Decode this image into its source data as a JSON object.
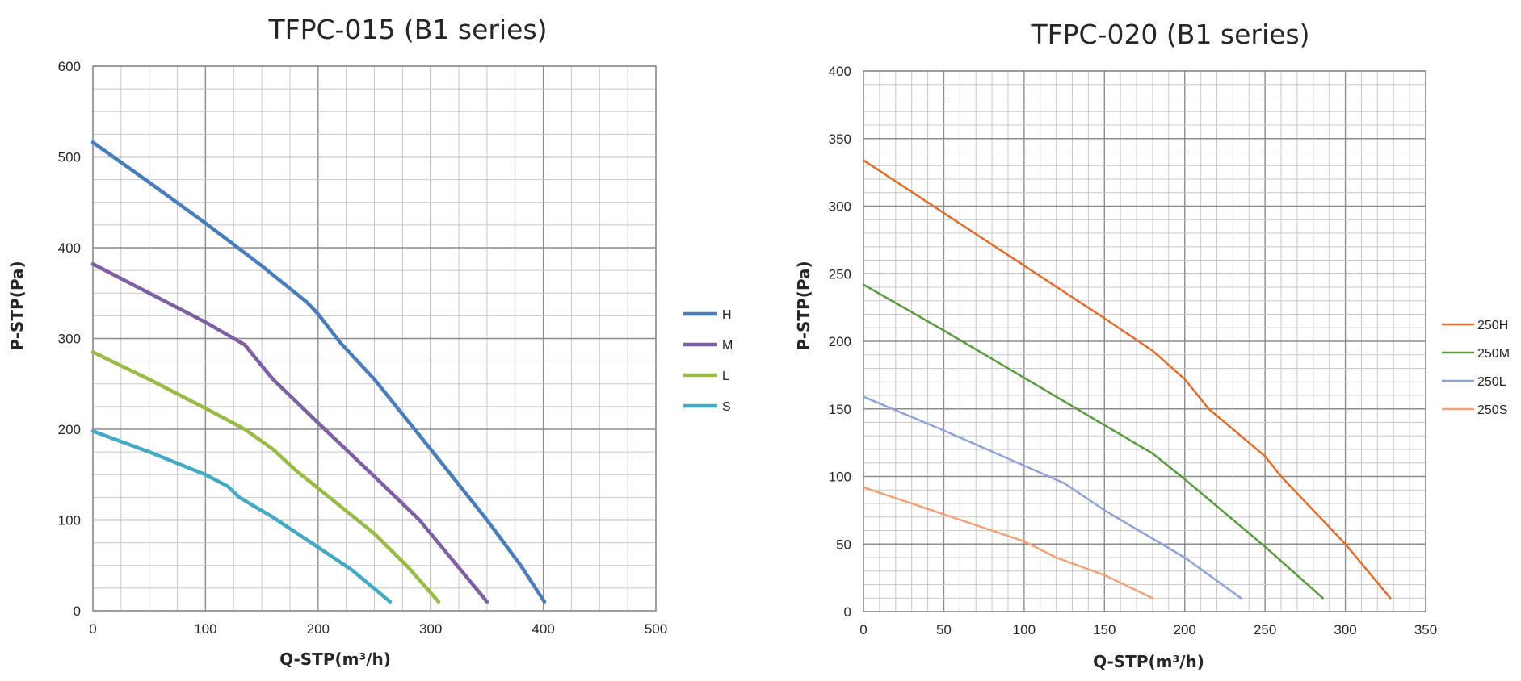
{
  "chart_data": [
    {
      "type": "line",
      "title": "TFPC-015 (B1 series)",
      "xlabel": "Q-STP(m³/h)",
      "ylabel": "P-STP(Pa)",
      "xlim": [
        0,
        500
      ],
      "ylim": [
        0,
        600
      ],
      "x_ticks": [
        "0",
        "100",
        "200",
        "300",
        "400",
        "500"
      ],
      "y_ticks": [
        "0",
        "100",
        "200",
        "300",
        "400",
        "500",
        "600"
      ],
      "grid": true,
      "legend_position": "right",
      "series": [
        {
          "name": "H",
          "color": "#4a7ebb",
          "points": [
            [
              0,
              516
            ],
            [
              50,
              472
            ],
            [
              100,
              427
            ],
            [
              150,
              380
            ],
            [
              190,
              340
            ],
            [
              200,
              327
            ],
            [
              220,
              295
            ],
            [
              250,
              255
            ],
            [
              300,
              178
            ],
            [
              350,
              100
            ],
            [
              380,
              50
            ],
            [
              401,
              10
            ]
          ]
        },
        {
          "name": "M",
          "color": "#7e5fa3",
          "points": [
            [
              0,
              382
            ],
            [
              50,
              350
            ],
            [
              100,
              318
            ],
            [
              135,
              293
            ],
            [
              150,
              270
            ],
            [
              160,
              255
            ],
            [
              200,
              207
            ],
            [
              250,
              148
            ],
            [
              290,
              100
            ],
            [
              320,
              55
            ],
            [
              350,
              10
            ]
          ]
        },
        {
          "name": "L",
          "color": "#98bb48",
          "points": [
            [
              0,
              285
            ],
            [
              50,
              255
            ],
            [
              100,
              223
            ],
            [
              135,
              200
            ],
            [
              160,
              178
            ],
            [
              180,
              155
            ],
            [
              200,
              135
            ],
            [
              250,
              85
            ],
            [
              280,
              48
            ],
            [
              307,
              10
            ]
          ]
        },
        {
          "name": "S",
          "color": "#44a9c5",
          "points": [
            [
              0,
              198
            ],
            [
              50,
              175
            ],
            [
              100,
              150
            ],
            [
              120,
              137
            ],
            [
              130,
              125
            ],
            [
              160,
              103
            ],
            [
              200,
              70
            ],
            [
              230,
              45
            ],
            [
              264,
              10
            ]
          ]
        }
      ]
    },
    {
      "type": "line",
      "title": "TFPC-020 (B1 series)",
      "xlabel": "Q-STP(m³/h)",
      "ylabel": "P-STP(Pa)",
      "xlim": [
        0,
        350
      ],
      "ylim": [
        0,
        400
      ],
      "x_ticks": [
        "0",
        "50",
        "100",
        "150",
        "200",
        "250",
        "300",
        "350"
      ],
      "y_ticks": [
        "0",
        "50",
        "100",
        "150",
        "200",
        "250",
        "300",
        "350",
        "400"
      ],
      "grid": true,
      "legend_position": "right",
      "series": [
        {
          "name": "250H",
          "color": "#e06d2a",
          "points": [
            [
              0,
              334
            ],
            [
              50,
              295
            ],
            [
              100,
              256
            ],
            [
              150,
              217
            ],
            [
              180,
              193
            ],
            [
              200,
              172
            ],
            [
              215,
              150
            ],
            [
              250,
              115
            ],
            [
              260,
              100
            ],
            [
              300,
              50
            ],
            [
              328,
              10
            ]
          ]
        },
        {
          "name": "250M",
          "color": "#5a9a3f",
          "points": [
            [
              0,
              242
            ],
            [
              50,
              208
            ],
            [
              100,
              173
            ],
            [
              150,
              138
            ],
            [
              180,
              117
            ],
            [
              200,
              98
            ],
            [
              250,
              48
            ],
            [
              286,
              10
            ]
          ]
        },
        {
          "name": "250L",
          "color": "#8fa2db",
          "points": [
            [
              0,
              159
            ],
            [
              50,
              134
            ],
            [
              100,
              108
            ],
            [
              125,
              95
            ],
            [
              150,
              75
            ],
            [
              200,
              40
            ],
            [
              235,
              10
            ]
          ]
        },
        {
          "name": "250S",
          "color": "#f3a179",
          "points": [
            [
              0,
              92
            ],
            [
              50,
              72
            ],
            [
              100,
              52
            ],
            [
              120,
              40
            ],
            [
              150,
              27
            ],
            [
              180,
              10
            ]
          ]
        }
      ]
    }
  ]
}
